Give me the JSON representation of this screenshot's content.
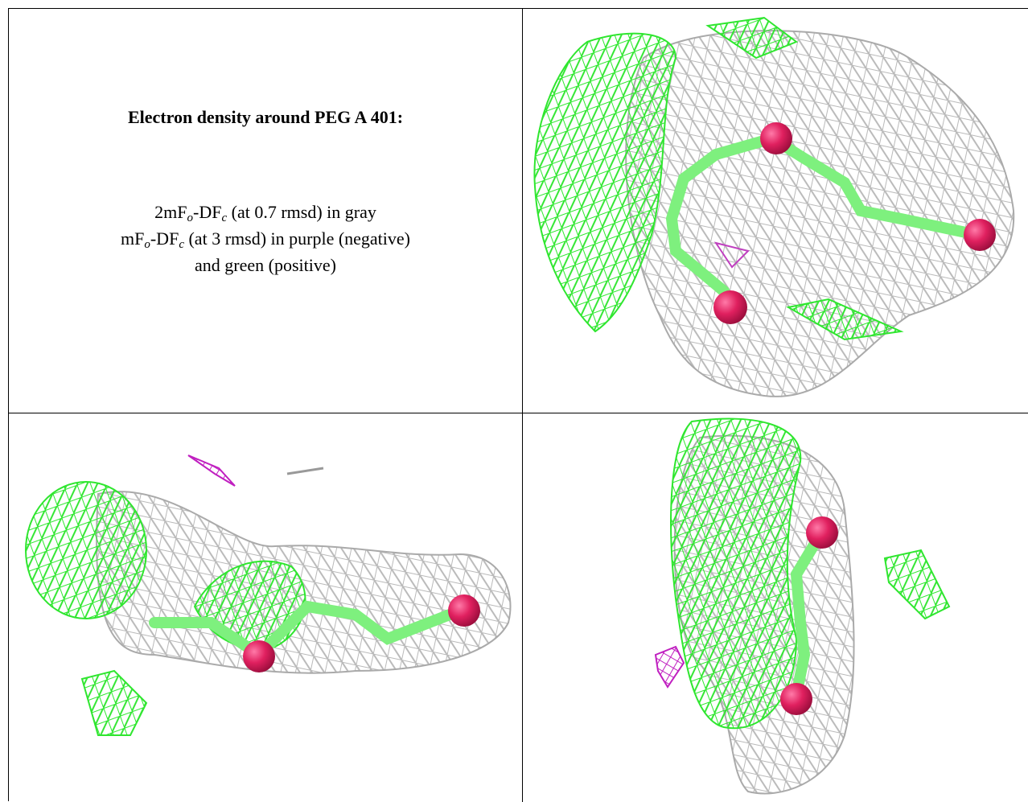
{
  "caption": {
    "title": "Electron density around PEG A 401:",
    "lines": [
      {
        "parts": [
          {
            "text": "2mF"
          },
          {
            "text": "o",
            "sub": true
          },
          {
            "text": "-DF"
          },
          {
            "text": "c",
            "sub": true
          },
          {
            "text": " (at 0.7 rmsd) in gray"
          }
        ]
      },
      {
        "parts": [
          {
            "text": "mF"
          },
          {
            "text": "o",
            "sub": true
          },
          {
            "text": "-DF"
          },
          {
            "text": "c",
            "sub": true
          },
          {
            "text": " (at 3 rmsd) in purple (negative)"
          }
        ]
      },
      {
        "parts": [
          {
            "text": "and green (positive)"
          }
        ]
      }
    ]
  }
}
